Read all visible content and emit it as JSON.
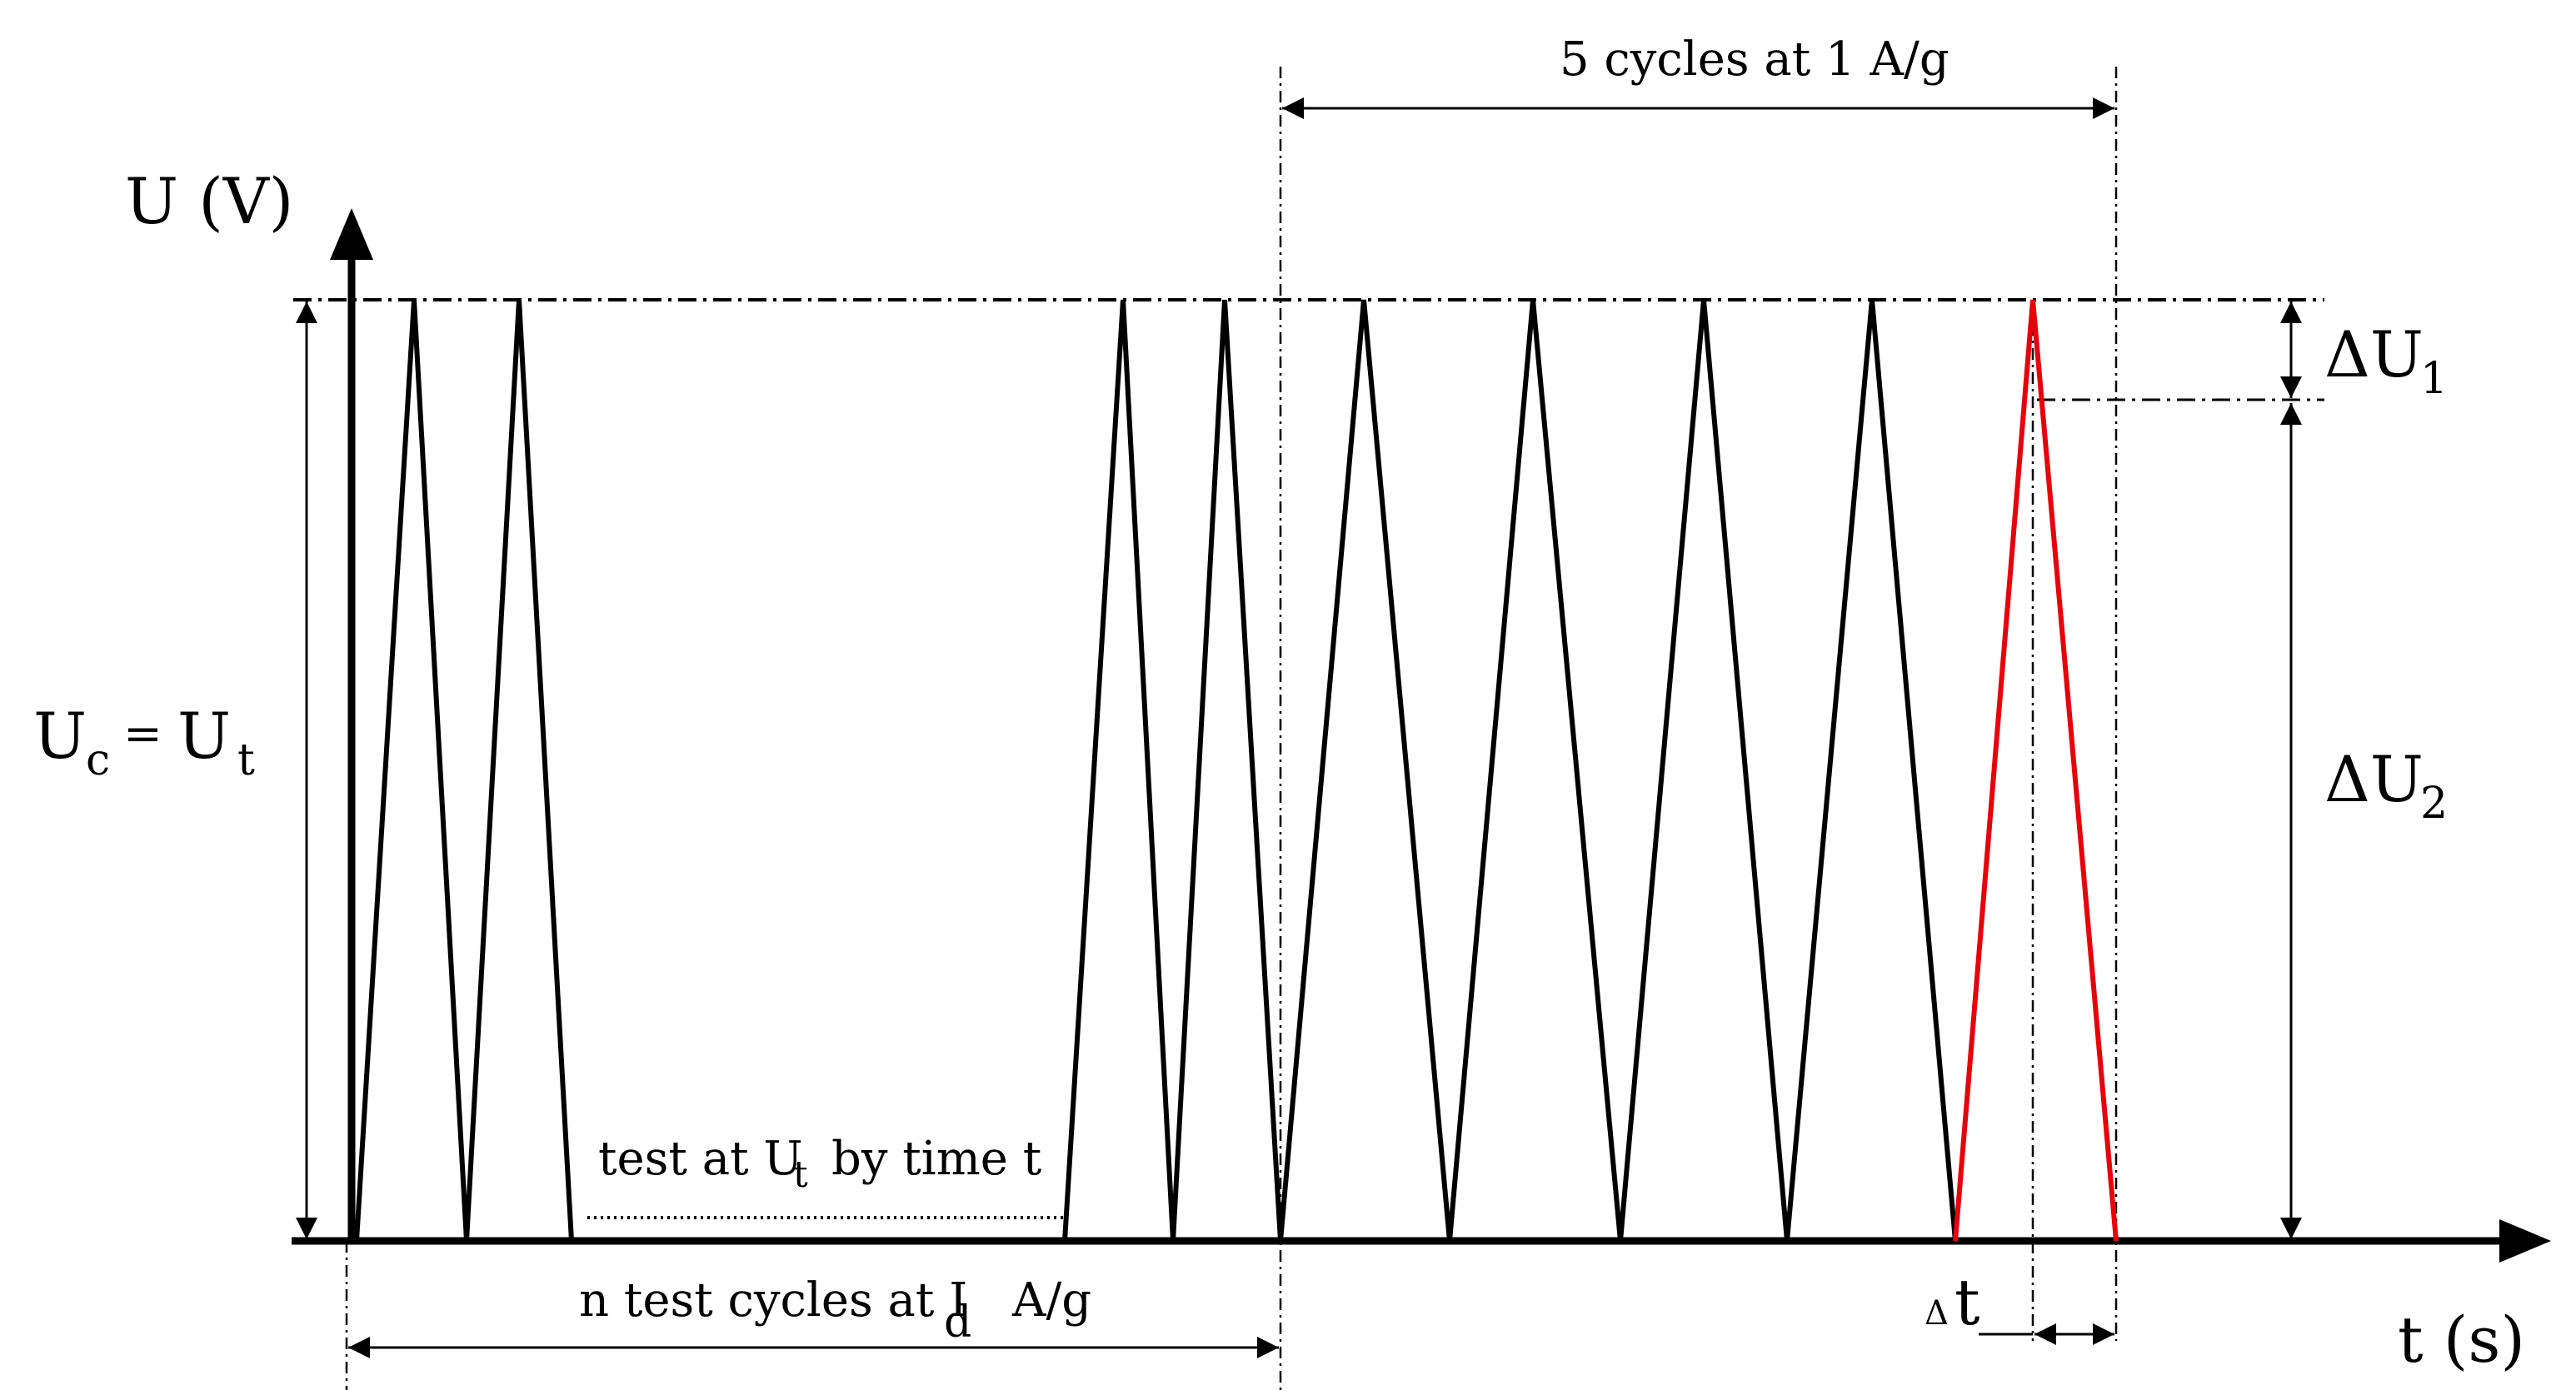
{
  "axes": {
    "y_label": "U (V)",
    "x_label": "t (s)"
  },
  "labels": {
    "uc_main": "U",
    "uc_sub": "c",
    "uc_eq": "=",
    "ut_main": "U",
    "ut_sub": "t",
    "du1_main": "ΔU",
    "du1_sub": "1",
    "du2_main": "ΔU",
    "du2_sub": "2",
    "cycles_1ag": "5 cycles at 1 A/g",
    "test_prefix": "test at U",
    "test_sub": "t",
    "test_suffix": "by time t",
    "ntest_prefix": "n test cycles at I",
    "ntest_sub": "d",
    "ntest_suffix": "A/g",
    "dt_delta": "Δ",
    "dt_t": "t"
  },
  "colors": {
    "line": "#000000",
    "highlight": "#e8000b"
  }
}
